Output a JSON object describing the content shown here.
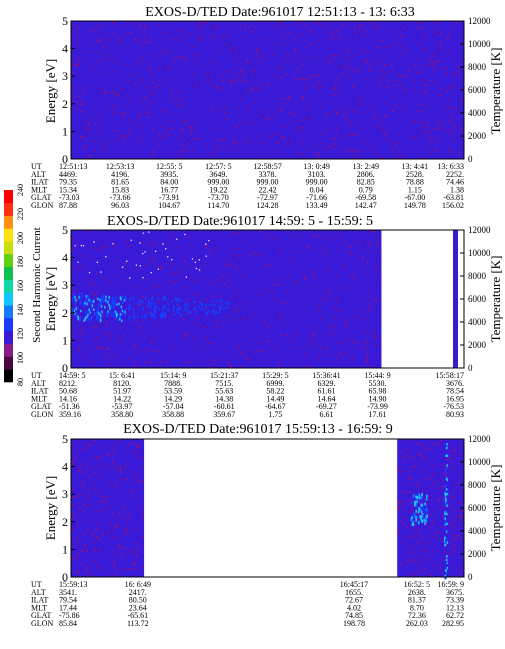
{
  "colors": {
    "background_field": "#3a1ad6",
    "speckle": "#a01070",
    "cyan": "#20c0ff",
    "blue": "#1640ff",
    "white_dot": "#e8e8ff",
    "colorbar": [
      "#000000",
      "#4a0a40",
      "#8a1a8a",
      "#3a1ad6",
      "#1a3aff",
      "#1a7aff",
      "#10c8ff",
      "#10d8a8",
      "#10c050",
      "#60d010",
      "#c8e010",
      "#ffe010",
      "#ff9010",
      "#ff3010",
      "#ff0000"
    ]
  },
  "chart_data": [
    {
      "type": "heatmap",
      "title": "EXOS-D/TED   Date:961017  12:51:13 - 13: 6:33",
      "ylabel": "Energy [eV]",
      "y2label": "Temperature [K]",
      "ylim": [
        0,
        5
      ],
      "y2lim": [
        0,
        12000
      ],
      "yticks": [
        "0",
        "1",
        "2",
        "3",
        "4",
        "5"
      ],
      "y2ticks": [
        "0",
        "2000",
        "4000",
        "6000",
        "8000",
        "10000",
        "12000"
      ],
      "data_extent": [
        0,
        1
      ],
      "ephemeris": {
        "labels": [
          "UT",
          "ALT",
          "ILAT",
          "MLT",
          "GLAT",
          "GLON"
        ],
        "columns": [
          [
            "12:51:13",
            "4469.",
            "79.35",
            "15.34",
            "-73.03",
            "87.88"
          ],
          [
            "12:53:13",
            "4196.",
            "81.65",
            "15.83",
            "-73.66",
            "96.03"
          ],
          [
            "12:55: 5",
            "3935.",
            "84.00",
            "16.77",
            "-73.91",
            "104.67"
          ],
          [
            "12:57: 5",
            "3649.",
            "999.00",
            "19.22",
            "-73.70",
            "114.70"
          ],
          [
            "12:58:57",
            "3378.",
            "999.00",
            "22.42",
            "-72.97",
            "124.28"
          ],
          [
            "13: 0:49",
            "3103.",
            "999.00",
            "0.04",
            "-71.66",
            "133.49"
          ],
          [
            "13: 2:49",
            "2806.",
            "82.85",
            "0.79",
            "-69.58",
            "142.47"
          ],
          [
            "13: 4:41",
            "2528.",
            "78.88",
            "1.15",
            "-67.00",
            "149.78"
          ],
          [
            "13: 6:33",
            "2252.",
            "74.46",
            "1.38",
            "-63.81",
            "156.02"
          ]
        ]
      }
    },
    {
      "type": "heatmap",
      "title": "EXOS-D/TED   Date:961017  14:59: 5 - 15:59: 5",
      "ylabel": "Energy [eV]",
      "y2label": "Temperature [K]",
      "ylim": [
        0,
        5
      ],
      "y2lim": [
        0,
        12000
      ],
      "yticks": [
        "0",
        "1",
        "2",
        "3",
        "4",
        "5"
      ],
      "y2ticks": [
        "0",
        "2000",
        "4000",
        "6000",
        "8000",
        "10000",
        "12000"
      ],
      "data_extent": [
        0,
        0.79
      ],
      "enhancement": {
        "energy_center": 2.2,
        "energy_width": 1.0,
        "time_end": 0.4
      },
      "colorbar": {
        "label": "Second Harmonic Current",
        "ticks": [
          "80",
          "100",
          "120",
          "140",
          "160",
          "180",
          "200",
          "220",
          "240"
        ]
      },
      "ephemeris": {
        "labels": [
          "UT",
          "ALT",
          "ILAT",
          "MLT",
          "GLAT",
          "GLON"
        ],
        "columns": [
          [
            "14:59: 5",
            "8212.",
            "50.68",
            "14.16",
            "-51.36",
            "359.16"
          ],
          [
            "15: 6:41",
            "8120.",
            "51.97",
            "14.22",
            "-53.97",
            "358.80"
          ],
          [
            "15:14: 9",
            "7888.",
            "53.59",
            "14.29",
            "-57.04",
            "358.88"
          ],
          [
            "15:21:37",
            "7515.",
            "55.63",
            "14.38",
            "-60.61",
            "359.67"
          ],
          [
            "15:29: 5",
            "6999.",
            "58.22",
            "14.49",
            "-64.67",
            "1.75"
          ],
          [
            "15:36:41",
            "6329.",
            "61.61",
            "14.64",
            "-69.27",
            "6.61"
          ],
          [
            "15:44: 9",
            "5530.",
            "65.98",
            "14.90",
            "-73.99",
            "17.61"
          ],
          [
            "15:58:17",
            "3676.",
            "78.54",
            "16.95",
            "-76.53",
            "80.93"
          ]
        ]
      }
    },
    {
      "type": "heatmap",
      "title": "EXOS-D/TED   Date:961017  15:59:13 - 16:59: 9",
      "ylabel": "Energy [eV]",
      "y2label": "Temperature [K]",
      "ylim": [
        0,
        5
      ],
      "y2lim": [
        0,
        12000
      ],
      "yticks": [
        "0",
        "1",
        "2",
        "3",
        "4",
        "5"
      ],
      "y2ticks": [
        "0",
        "2000",
        "4000",
        "6000",
        "8000",
        "10000",
        "12000"
      ],
      "segments": [
        [
          0,
          0.186
        ],
        [
          0.83,
          1.0
        ]
      ],
      "ephemeris": {
        "labels": [
          "UT",
          "ALT",
          "ILAT",
          "MLT",
          "GLAT",
          "GLON"
        ],
        "columns": [
          [
            "15:59:13",
            "3541.",
            "79.54",
            "17.44",
            "-75.86",
            "85.84"
          ],
          [
            "16: 6:49",
            "2417.",
            "80.50",
            "23.64",
            "-65.61",
            "113.72"
          ],
          [
            "16:45:17",
            "1655.",
            "72.67",
            "4.02",
            "74.85",
            "198.78"
          ],
          [
            "16:52: 5",
            "2638.",
            "81.37",
            "8.70",
            "72.36",
            "262.03"
          ],
          [
            "16:59: 9",
            "3675.",
            "73.39",
            "12.13",
            "62.72",
            "282.95"
          ]
        ]
      }
    }
  ]
}
